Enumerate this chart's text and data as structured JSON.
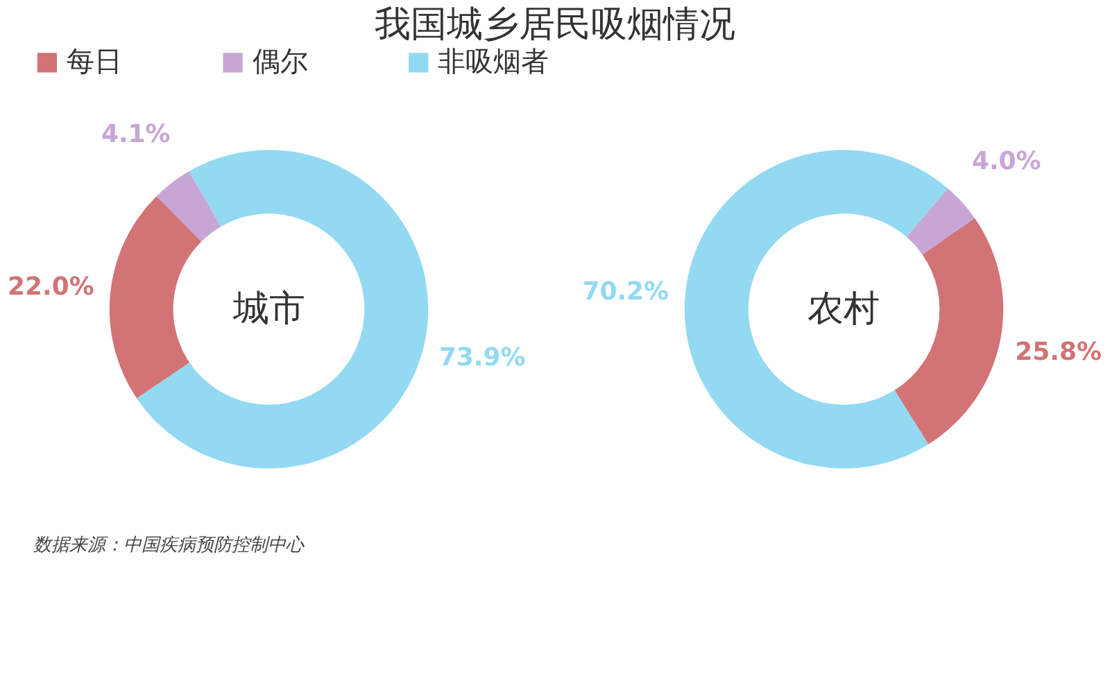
{
  "chart_data": {
    "type": "donut",
    "title": "我国城乡居民吸烟情况",
    "categories": [
      "每日",
      "偶尔",
      "非吸烟者"
    ],
    "colors": [
      "#d27375",
      "#c7a6d5",
      "#93d9f2"
    ],
    "legend": "top",
    "annotations": [
      "数据来源：中国疾病预防控制中心"
    ],
    "series": [
      {
        "name": "城市",
        "values": [
          22.0,
          4.1,
          73.9
        ],
        "value_labels": [
          "22.0%",
          "4.1%",
          "73.9%"
        ]
      },
      {
        "name": "农村",
        "values": [
          25.8,
          4.0,
          70.2
        ],
        "value_labels": [
          "25.8%",
          "4.0%",
          "70.2%"
        ]
      }
    ]
  }
}
